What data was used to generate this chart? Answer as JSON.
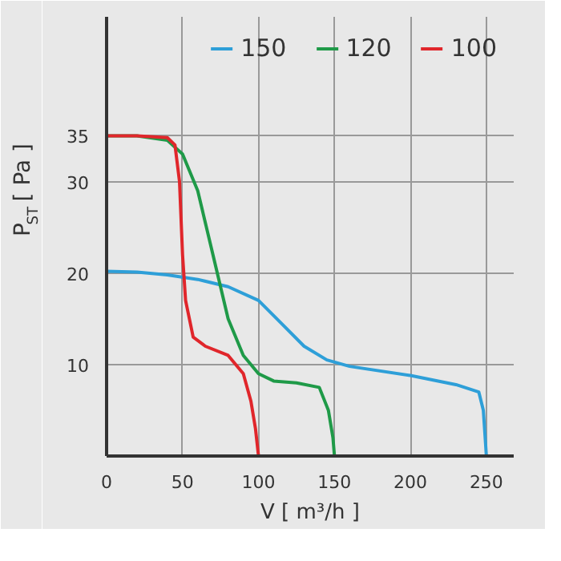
{
  "chart_data": {
    "type": "line",
    "xlabel": "V [ m³/h ]",
    "ylabel": "P$_{ST}$ [ Pa ]",
    "xlim": [
      0,
      268
    ],
    "ylim": [
      0,
      48
    ],
    "xticks": [
      0,
      50,
      100,
      150,
      200,
      250
    ],
    "yticks": [
      10,
      20,
      30,
      35
    ],
    "grid": true,
    "legend": "top right",
    "marker": "none",
    "line_style": "solid",
    "series": [
      {
        "name": "150",
        "color": "#2e9fd8",
        "x": [
          0,
          20,
          40,
          60,
          80,
          100,
          115,
          130,
          145,
          160,
          200,
          230,
          245,
          248,
          250
        ],
        "values": [
          20.2,
          20.1,
          19.8,
          19.3,
          18.5,
          17,
          14.5,
          12,
          10.5,
          9.8,
          8.8,
          7.8,
          7,
          5,
          0
        ]
      },
      {
        "name": "120",
        "color": "#1f9a48",
        "x": [
          0,
          20,
          40,
          50,
          60,
          70,
          80,
          90,
          100,
          110,
          125,
          140,
          146,
          149,
          150
        ],
        "values": [
          35,
          35,
          34.5,
          33,
          29,
          22,
          15,
          11,
          9,
          8.2,
          8,
          7.5,
          5,
          2,
          0
        ]
      },
      {
        "name": "100",
        "color": "#e0262b",
        "x": [
          0,
          20,
          40,
          45,
          48,
          50,
          52,
          57,
          65,
          80,
          90,
          95,
          98,
          100
        ],
        "values": [
          35,
          35,
          34.8,
          34,
          30,
          22,
          17,
          13,
          12,
          11,
          9,
          6,
          3,
          0
        ]
      }
    ]
  }
}
